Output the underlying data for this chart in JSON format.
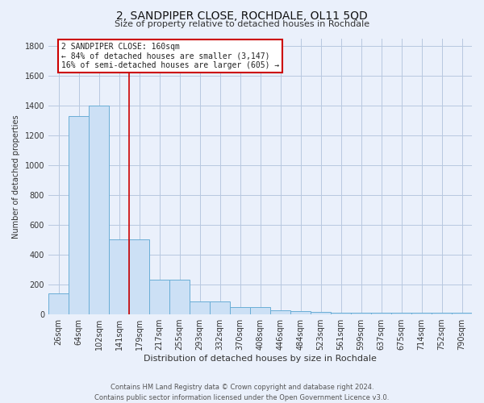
{
  "title": "2, SANDPIPER CLOSE, ROCHDALE, OL11 5QD",
  "subtitle": "Size of property relative to detached houses in Rochdale",
  "xlabel": "Distribution of detached houses by size in Rochdale",
  "ylabel": "Number of detached properties",
  "footer1": "Contains HM Land Registry data © Crown copyright and database right 2024.",
  "footer2": "Contains public sector information licensed under the Open Government Licence v3.0.",
  "bin_labels": [
    "26sqm",
    "64sqm",
    "102sqm",
    "141sqm",
    "179sqm",
    "217sqm",
    "255sqm",
    "293sqm",
    "332sqm",
    "370sqm",
    "408sqm",
    "446sqm",
    "484sqm",
    "523sqm",
    "561sqm",
    "599sqm",
    "637sqm",
    "675sqm",
    "714sqm",
    "752sqm",
    "790sqm"
  ],
  "bar_heights": [
    140,
    1330,
    1400,
    500,
    500,
    230,
    230,
    85,
    85,
    50,
    50,
    25,
    20,
    15,
    10,
    10,
    10,
    10,
    10,
    10,
    10
  ],
  "bar_color": "#cce0f5",
  "bar_edge_color": "#6aaed6",
  "bg_color": "#eaf0fb",
  "grid_color": "#b8c8e0",
  "vline_x_idx": 3.5,
  "vline_color": "#cc0000",
  "annotation_text": "2 SANDPIPER CLOSE: 160sqm\n← 84% of detached houses are smaller (3,147)\n16% of semi-detached houses are larger (605) →",
  "annotation_box_color": "#ffffff",
  "annotation_box_edge": "#cc0000",
  "ylim": [
    0,
    1850
  ],
  "yticks": [
    0,
    200,
    400,
    600,
    800,
    1000,
    1200,
    1400,
    1600,
    1800
  ],
  "title_fontsize": 10,
  "subtitle_fontsize": 8,
  "xlabel_fontsize": 8,
  "ylabel_fontsize": 7,
  "tick_fontsize": 7,
  "footer_fontsize": 6
}
